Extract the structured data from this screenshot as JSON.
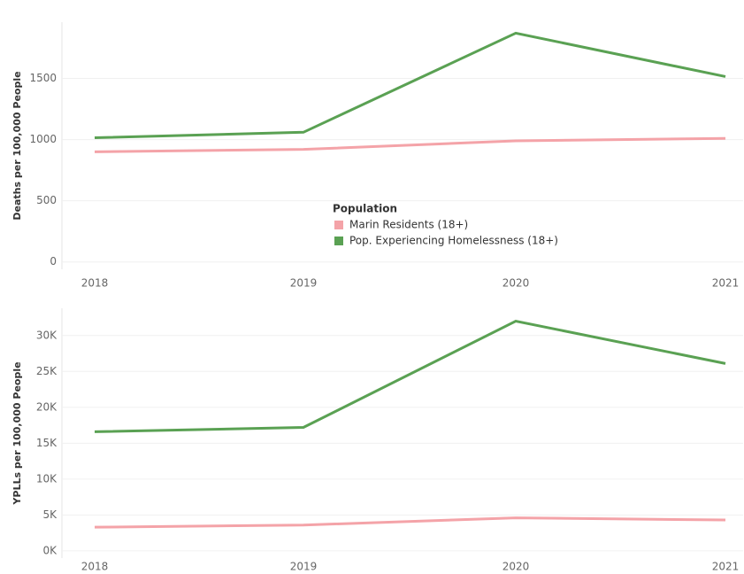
{
  "chart_data": [
    {
      "type": "line",
      "y_label": "Deaths per 100,000 People",
      "categories": [
        "2018",
        "2019",
        "2020",
        "2021"
      ],
      "series": [
        {
          "name": "Marin Residents (18+)",
          "color": "#f4a3a8",
          "values": [
            900,
            920,
            990,
            1010
          ]
        },
        {
          "name": "Pop. Experiencing Homelessness (18+)",
          "color": "#5aa153",
          "values": [
            1015,
            1060,
            1870,
            1515
          ]
        }
      ],
      "legend_title": "Population",
      "ylim": [
        -60,
        1960
      ],
      "yticks": [
        0,
        500,
        1000,
        1500
      ],
      "grid": true
    },
    {
      "type": "line",
      "y_label": "YPLLs per 100,000 People",
      "categories": [
        "2018",
        "2019",
        "2020",
        "2021"
      ],
      "series": [
        {
          "name": "Marin Residents (18+)",
          "color": "#f4a3a8",
          "values": [
            3300,
            3600,
            4600,
            4300
          ]
        },
        {
          "name": "Pop. Experiencing Homelessness (18+)",
          "color": "#5aa153",
          "values": [
            16600,
            17200,
            32000,
            26100
          ]
        }
      ],
      "ylim": [
        -1000,
        33800
      ],
      "yticks": [
        {
          "value": 0,
          "label": "0K"
        },
        {
          "value": 5000,
          "label": "5K"
        },
        {
          "value": 10000,
          "label": "10K"
        },
        {
          "value": 15000,
          "label": "15K"
        },
        {
          "value": 20000,
          "label": "20K"
        },
        {
          "value": 25000,
          "label": "25K"
        },
        {
          "value": 30000,
          "label": "30K"
        }
      ],
      "grid": true
    }
  ]
}
